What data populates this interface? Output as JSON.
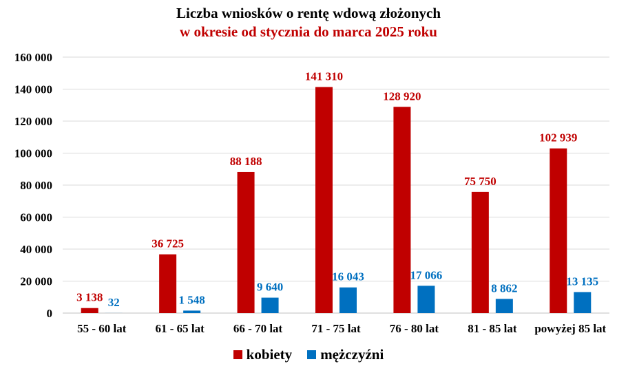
{
  "chart_data": {
    "type": "bar",
    "title": "Liczba wniosków o rentę wdową złożonych",
    "subtitle": "w okresie od stycznia do marca 2025 roku",
    "categories": [
      "55 - 60 lat",
      "61 - 65 lat",
      "66 - 70 lat",
      "71 - 75 lat",
      "76 - 80 lat",
      "81 - 85 lat",
      "powyżej 85 lat"
    ],
    "series": [
      {
        "name": "kobiety",
        "color": "#c00000",
        "values": [
          3138,
          36725,
          88188,
          141310,
          128920,
          75750,
          102939
        ],
        "labels": [
          "3 138",
          "36 725",
          "88 188",
          "141 310",
          "128 920",
          "75 750",
          "102 939"
        ]
      },
      {
        "name": "mężczyźni",
        "color": "#0070c0",
        "values": [
          32,
          1548,
          9640,
          16043,
          17066,
          8862,
          13135
        ],
        "labels": [
          "32",
          "1 548",
          "9 640",
          "16 043",
          "17 066",
          "8 862",
          "13 135"
        ]
      }
    ],
    "ylim": [
      0,
      160000
    ],
    "yticks": [
      0,
      20000,
      40000,
      60000,
      80000,
      100000,
      120000,
      140000,
      160000
    ],
    "ytick_labels": [
      "0",
      "20 000",
      "40 000",
      "60 000",
      "80 000",
      "100 000",
      "120 000",
      "140 000",
      "160 000"
    ],
    "grid": true,
    "legend_position": "bottom"
  }
}
